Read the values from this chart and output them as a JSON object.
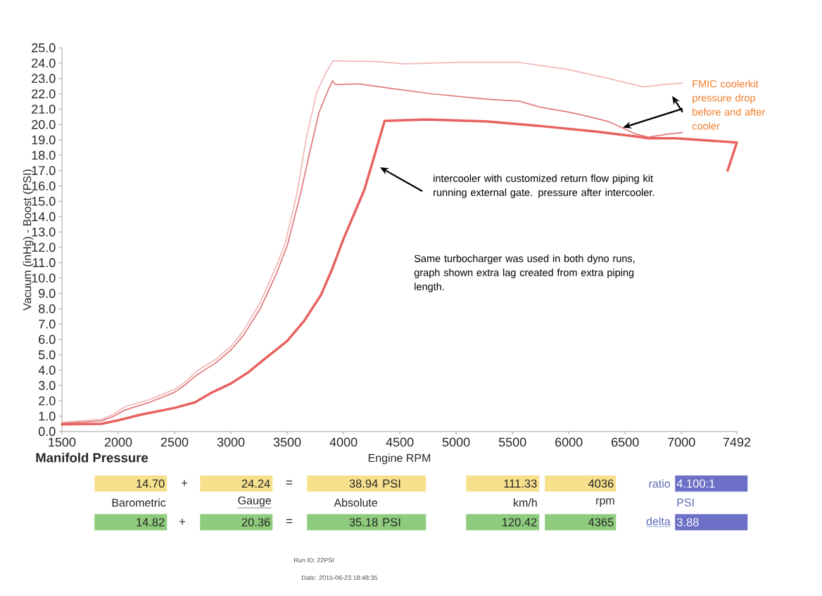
{
  "chart_data": {
    "type": "line",
    "title": "Manifold Pressure",
    "xlabel": "Engine RPM",
    "ylabel": "Vacuum (inHg) - Boost (PSI)",
    "xlim": [
      1500,
      7492
    ],
    "ylim": [
      0,
      25
    ],
    "xticks": [
      1500,
      2000,
      2500,
      3000,
      3500,
      4000,
      4500,
      5000,
      5500,
      6000,
      6500,
      7000,
      7492
    ],
    "yticks": [
      {
        "value": 0,
        "label": "0.0"
      },
      {
        "value": 1,
        "label": "1.0"
      },
      {
        "value": 2,
        "label": "2.0"
      },
      {
        "value": 3,
        "label": "3.0"
      },
      {
        "value": 4,
        "label": "4.0"
      },
      {
        "value": 5,
        "label": "5.0"
      },
      {
        "value": 6,
        "label": "6.0"
      },
      {
        "value": 7,
        "label": "7.0"
      },
      {
        "value": 8,
        "label": "8.0"
      },
      {
        "value": 9,
        "label": "9.0"
      },
      {
        "value": 10,
        "label": "10.0"
      },
      {
        "value": 11,
        "label": "11.0"
      },
      {
        "value": 12,
        "label": "12.0"
      },
      {
        "value": 13,
        "label": "13.0"
      },
      {
        "value": 14,
        "label": "14.0"
      },
      {
        "value": 15,
        "label": "15.0"
      },
      {
        "value": 16,
        "label": "16.0"
      },
      {
        "value": 17,
        "label": "17.0"
      },
      {
        "value": 18,
        "label": "18.0"
      },
      {
        "value": 19,
        "label": "19.0"
      },
      {
        "value": 20,
        "label": "20.0"
      },
      {
        "value": 21,
        "label": "21.0"
      },
      {
        "value": 22,
        "label": "22.0"
      },
      {
        "value": 23,
        "label": "23.0"
      },
      {
        "value": 24,
        "label": "24.0"
      },
      {
        "value": 25,
        "label": "25.0"
      }
    ],
    "series": [
      {
        "color": "#f2b8b8",
        "x": [
          1500,
          1850,
          1950,
          2055,
          2285,
          2500,
          2590,
          2700,
          2865,
          3000,
          3115,
          3260,
          3405,
          3480,
          3585,
          3669,
          3762,
          3846,
          3908,
          4306,
          4544,
          5025,
          5556,
          5988,
          6350,
          6663,
          6831,
          7010
        ],
        "values": [
          0.6,
          0.8,
          1.1,
          1.6,
          2.1,
          2.75,
          3.2,
          3.95,
          4.7,
          5.55,
          6.6,
          8.4,
          10.8,
          12.2,
          15.45,
          19.1,
          22.1,
          23.4,
          24.15,
          24.1,
          23.95,
          24.05,
          24.05,
          23.6,
          23.0,
          22.45,
          22.6,
          22.7
        ]
      },
      {
        "color": "#e07a7c",
        "x": [
          1500,
          1850,
          1950,
          2055,
          2285,
          2500,
          2590,
          2700,
          2865,
          3000,
          3115,
          3260,
          3405,
          3500,
          3617,
          3700,
          3783,
          3867,
          3904,
          3929,
          4137,
          4425,
          4787,
          5269,
          5556,
          5750,
          5988,
          6131,
          6350,
          6588,
          6709,
          6878,
          7010
        ],
        "values": [
          0.53,
          0.69,
          0.96,
          1.39,
          1.92,
          2.56,
          3.02,
          3.7,
          4.47,
          5.31,
          6.3,
          8.0,
          10.3,
          12.1,
          15.45,
          18.2,
          20.8,
          22.3,
          22.85,
          22.6,
          22.65,
          22.35,
          22.0,
          21.65,
          21.53,
          21.12,
          20.83,
          20.6,
          20.2,
          19.4,
          19.18,
          19.37,
          19.48
        ]
      },
      {
        "color": "#e8625f",
        "x": [
          1500,
          1850,
          2000,
          2200,
          2500,
          2680,
          2820,
          3000,
          3155,
          3320,
          3500,
          3650,
          3800,
          3900,
          4000,
          4185,
          4270,
          4365,
          4737,
          5269,
          5750,
          6231,
          6588,
          6709,
          6950,
          7492,
          7410
        ],
        "values": [
          0.47,
          0.5,
          0.73,
          1.1,
          1.54,
          1.9,
          2.5,
          3.13,
          3.86,
          4.85,
          5.9,
          7.2,
          8.9,
          10.6,
          12.55,
          15.75,
          17.86,
          20.24,
          20.33,
          20.2,
          19.9,
          19.55,
          19.23,
          19.1,
          19.1,
          18.83,
          17.0
        ]
      }
    ],
    "annotations": [
      "intercooler with customized return flow piping kit running external gate. pressure after intercooler.",
      {
        "text": "FMIC coolerkit pressure drop before and after cooler",
        "x": 6480,
        "y": 19.8
      },
      "Same turbocharger was used in both dyno runs, graph shown extra lag created from extra piping length.",
      "14.70",
      "+",
      "24.24",
      "=",
      "38.94",
      "PSI",
      "111.33",
      "4036",
      "ratio",
      "4.100:1",
      "Barometric",
      "Gauge",
      "Absolute",
      "km/h",
      "rpm",
      "PSI",
      "14.82",
      "+",
      "20.36",
      "=",
      "35.18",
      "PSI",
      "120.42",
      "4365",
      "delta",
      "3.88",
      "Run ID: 22PSI",
      "Date: 2015-06-23 18:48:35"
    ]
  }
}
